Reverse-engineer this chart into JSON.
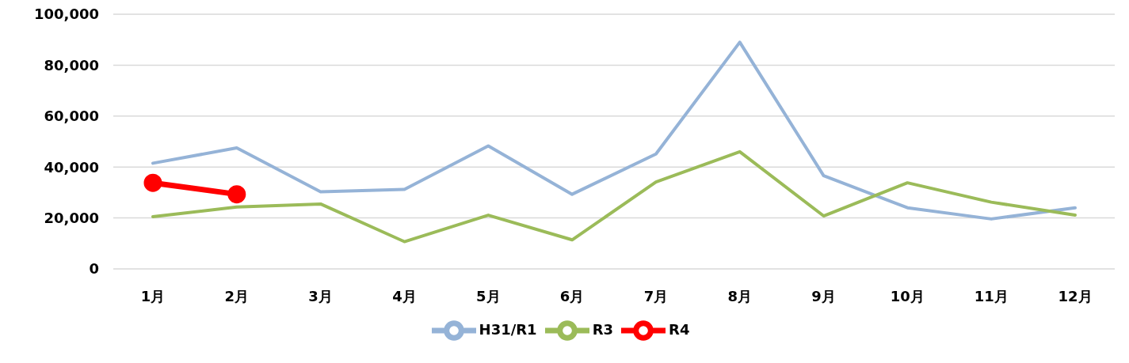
{
  "chart_data": {
    "type": "line",
    "categories": [
      "1月",
      "2月",
      "3月",
      "4月",
      "5月",
      "6月",
      "7月",
      "8月",
      "9月",
      "10月",
      "11月",
      "12月"
    ],
    "series": [
      {
        "name": "H31/R1",
        "color": "#95b3d7",
        "marker": "none",
        "values": [
          41500,
          47500,
          30300,
          31200,
          48300,
          29300,
          45100,
          89000,
          36600,
          24000,
          19600,
          24000
        ]
      },
      {
        "name": "R3",
        "color": "#9bbb59",
        "marker": "none",
        "values": [
          20500,
          24300,
          25500,
          10700,
          21100,
          11400,
          34100,
          46000,
          20800,
          33800,
          26200,
          21100
        ]
      },
      {
        "name": "R4",
        "color": "#ff0000",
        "marker": "circle",
        "values": [
          33800,
          29300,
          null,
          null,
          null,
          null,
          null,
          null,
          null,
          null,
          null,
          null
        ]
      }
    ],
    "ylim": [
      0,
      100000
    ],
    "yticks": [
      0,
      {
        "value": 20000,
        "label": "20,000"
      },
      {
        "value": 40000,
        "label": "40,000"
      },
      {
        "value": 60000,
        "label": "60,000"
      },
      {
        "value": 80000,
        "label": "80,000"
      },
      {
        "value": 100000,
        "label": "100,000"
      }
    ],
    "grid": "y",
    "legend": "bottom",
    "line_style": "solid"
  }
}
